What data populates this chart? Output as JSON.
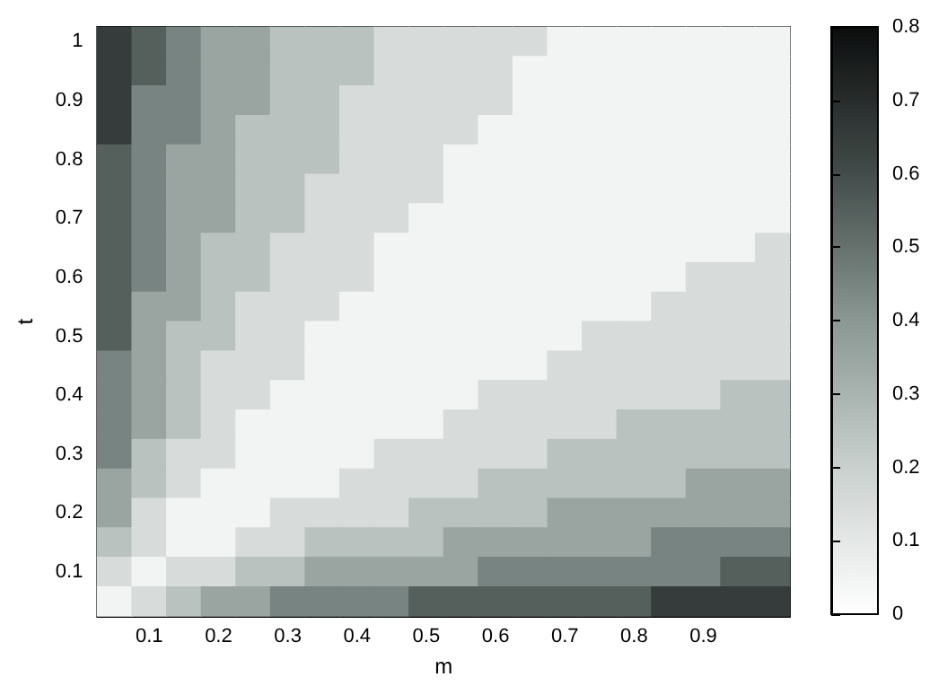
{
  "chart_data": {
    "type": "heatmap",
    "xlabel": "m",
    "ylabel": "t",
    "categories": [
      null,
      "0.1",
      null,
      "0.2",
      null,
      "0.3",
      null,
      "0.4",
      null,
      "0.5",
      null,
      "0.6",
      null,
      "0.7",
      null,
      "0.8",
      null,
      "0.9",
      null,
      null
    ],
    "y_categories": [
      "1",
      null,
      "0.9",
      null,
      "0.8",
      null,
      "0.7",
      null,
      "0.6",
      null,
      "0.5",
      null,
      "0.4",
      null,
      "0.3",
      null,
      "0.2",
      null,
      "0.1",
      null
    ],
    "cells": [
      [
        0.65,
        0.55,
        0.45,
        0.35,
        0.35,
        0.25,
        0.25,
        0.25,
        0.15,
        0.15,
        0.15,
        0.15,
        0.15,
        0.05,
        0.05,
        0.05,
        0.05,
        0.05,
        0.05,
        0.05
      ],
      [
        0.65,
        0.55,
        0.45,
        0.35,
        0.35,
        0.25,
        0.25,
        0.25,
        0.15,
        0.15,
        0.15,
        0.15,
        0.05,
        0.05,
        0.05,
        0.05,
        0.05,
        0.05,
        0.05,
        0.05
      ],
      [
        0.65,
        0.45,
        0.45,
        0.35,
        0.35,
        0.25,
        0.25,
        0.15,
        0.15,
        0.15,
        0.15,
        0.15,
        0.05,
        0.05,
        0.05,
        0.05,
        0.05,
        0.05,
        0.05,
        0.05
      ],
      [
        0.65,
        0.45,
        0.45,
        0.35,
        0.25,
        0.25,
        0.25,
        0.15,
        0.15,
        0.15,
        0.15,
        0.05,
        0.05,
        0.05,
        0.05,
        0.05,
        0.05,
        0.05,
        0.05,
        0.05
      ],
      [
        0.55,
        0.45,
        0.35,
        0.35,
        0.25,
        0.25,
        0.25,
        0.15,
        0.15,
        0.15,
        0.05,
        0.05,
        0.05,
        0.05,
        0.05,
        0.05,
        0.05,
        0.05,
        0.05,
        0.05
      ],
      [
        0.55,
        0.45,
        0.35,
        0.35,
        0.25,
        0.25,
        0.15,
        0.15,
        0.15,
        0.15,
        0.05,
        0.05,
        0.05,
        0.05,
        0.05,
        0.05,
        0.05,
        0.05,
        0.05,
        0.05
      ],
      [
        0.55,
        0.45,
        0.35,
        0.35,
        0.25,
        0.25,
        0.15,
        0.15,
        0.15,
        0.05,
        0.05,
        0.05,
        0.05,
        0.05,
        0.05,
        0.05,
        0.05,
        0.05,
        0.05,
        0.05
      ],
      [
        0.55,
        0.45,
        0.35,
        0.25,
        0.25,
        0.15,
        0.15,
        0.15,
        0.05,
        0.05,
        0.05,
        0.05,
        0.05,
        0.05,
        0.05,
        0.05,
        0.05,
        0.05,
        0.05,
        0.15
      ],
      [
        0.55,
        0.45,
        0.35,
        0.25,
        0.25,
        0.15,
        0.15,
        0.15,
        0.05,
        0.05,
        0.05,
        0.05,
        0.05,
        0.05,
        0.05,
        0.05,
        0.05,
        0.15,
        0.15,
        0.15
      ],
      [
        0.55,
        0.35,
        0.35,
        0.25,
        0.15,
        0.15,
        0.15,
        0.05,
        0.05,
        0.05,
        0.05,
        0.05,
        0.05,
        0.05,
        0.05,
        0.05,
        0.15,
        0.15,
        0.15,
        0.15
      ],
      [
        0.55,
        0.35,
        0.25,
        0.25,
        0.15,
        0.15,
        0.05,
        0.05,
        0.05,
        0.05,
        0.05,
        0.05,
        0.05,
        0.05,
        0.15,
        0.15,
        0.15,
        0.15,
        0.15,
        0.15
      ],
      [
        0.45,
        0.35,
        0.25,
        0.15,
        0.15,
        0.15,
        0.05,
        0.05,
        0.05,
        0.05,
        0.05,
        0.05,
        0.05,
        0.15,
        0.15,
        0.15,
        0.15,
        0.15,
        0.15,
        0.15
      ],
      [
        0.45,
        0.35,
        0.25,
        0.15,
        0.15,
        0.05,
        0.05,
        0.05,
        0.05,
        0.05,
        0.05,
        0.15,
        0.15,
        0.15,
        0.15,
        0.15,
        0.15,
        0.15,
        0.25,
        0.25
      ],
      [
        0.45,
        0.35,
        0.25,
        0.15,
        0.05,
        0.05,
        0.05,
        0.05,
        0.05,
        0.05,
        0.15,
        0.15,
        0.15,
        0.15,
        0.15,
        0.25,
        0.25,
        0.25,
        0.25,
        0.25
      ],
      [
        0.45,
        0.25,
        0.15,
        0.15,
        0.05,
        0.05,
        0.05,
        0.05,
        0.15,
        0.15,
        0.15,
        0.15,
        0.15,
        0.25,
        0.25,
        0.25,
        0.25,
        0.25,
        0.25,
        0.25
      ],
      [
        0.35,
        0.25,
        0.15,
        0.05,
        0.05,
        0.05,
        0.05,
        0.15,
        0.15,
        0.15,
        0.15,
        0.25,
        0.25,
        0.25,
        0.25,
        0.25,
        0.25,
        0.35,
        0.35,
        0.35
      ],
      [
        0.35,
        0.15,
        0.05,
        0.05,
        0.05,
        0.15,
        0.15,
        0.15,
        0.15,
        0.25,
        0.25,
        0.25,
        0.25,
        0.35,
        0.35,
        0.35,
        0.35,
        0.35,
        0.35,
        0.35
      ],
      [
        0.25,
        0.15,
        0.05,
        0.05,
        0.15,
        0.15,
        0.25,
        0.25,
        0.25,
        0.25,
        0.35,
        0.35,
        0.35,
        0.35,
        0.35,
        0.35,
        0.45,
        0.45,
        0.45,
        0.45
      ],
      [
        0.15,
        0.05,
        0.15,
        0.15,
        0.25,
        0.25,
        0.35,
        0.35,
        0.35,
        0.35,
        0.35,
        0.45,
        0.45,
        0.45,
        0.45,
        0.45,
        0.45,
        0.45,
        0.55,
        0.55
      ],
      [
        0.05,
        0.15,
        0.25,
        0.35,
        0.35,
        0.45,
        0.45,
        0.45,
        0.45,
        0.55,
        0.55,
        0.55,
        0.55,
        0.55,
        0.55,
        0.55,
        0.65,
        0.65,
        0.65,
        0.65
      ]
    ],
    "clim": [
      0,
      0.8
    ],
    "cticks": [
      0,
      0.1,
      0.2,
      0.3,
      0.4,
      0.5,
      0.6,
      0.7,
      0.8
    ]
  }
}
